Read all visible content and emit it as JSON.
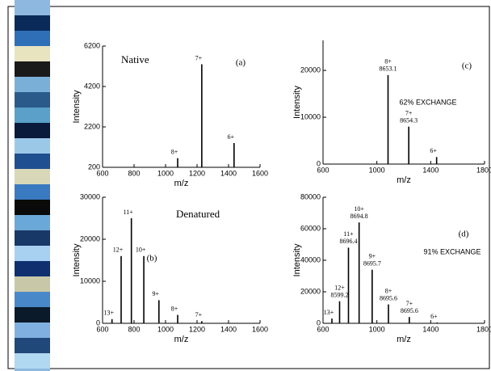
{
  "chart_data": [
    {
      "type": "stem",
      "title": "Native",
      "panel_label": "(a)",
      "x_label": "m/z",
      "y_label": "Intensity",
      "x": [
        1077,
        1230,
        1435
      ],
      "values": [
        650,
        5300,
        1400
      ],
      "peak_labels": [
        "8+",
        "7+",
        "6+"
      ],
      "xlim": [
        600,
        1600
      ],
      "xticks": [
        600,
        800,
        1000,
        1200,
        1400,
        1600
      ],
      "ylim": [
        200,
        6200
      ],
      "yticks": [
        200,
        2200,
        4200,
        6200
      ],
      "color": "#000000"
    },
    {
      "type": "stem",
      "title": "Denatured",
      "panel_label": "(b)",
      "x_label": "m/z",
      "y_label": "Intensity",
      "x": [
        660,
        718,
        783,
        862,
        958,
        1077,
        1230
      ],
      "values": [
        1000,
        16000,
        25000,
        16000,
        5500,
        2000,
        500
      ],
      "peak_labels": [
        "13+",
        "12+",
        "11+",
        "10+",
        "9+",
        "8+",
        "7+"
      ],
      "xlim": [
        600,
        1600
      ],
      "xticks": [
        600,
        800,
        1000,
        1200,
        1400,
        1600
      ],
      "ylim": [
        0,
        30000
      ],
      "yticks": [
        0,
        10000,
        20000,
        30000
      ],
      "color": "#000000"
    },
    {
      "type": "stem",
      "panel_label": "(c)",
      "annotation": "62% EXCHANGE",
      "x_label": "m/z",
      "y_label": "Intensity",
      "x": [
        1083,
        1237,
        1444
      ],
      "values": [
        19000,
        8000,
        1500
      ],
      "peak_labels": [
        "8+",
        "7+",
        "6+"
      ],
      "mass_labels": [
        "8653.1",
        "8654.3",
        null
      ],
      "xlim": [
        600,
        1800
      ],
      "xticks": [
        600,
        1000,
        1400,
        1800
      ],
      "ylim": [
        0,
        26400
      ],
      "yticks": [
        0,
        10000,
        20000
      ],
      "color": "#000000"
    },
    {
      "type": "stem",
      "panel_label": "(d)",
      "annotation": "91% EXCHANGE",
      "x_label": "m/z",
      "y_label": "Intensity",
      "x": [
        666,
        723,
        789,
        868,
        965,
        1086,
        1241,
        1448
      ],
      "values": [
        3000,
        14000,
        48000,
        64000,
        34000,
        12000,
        4000,
        500
      ],
      "peak_labels": [
        "13+",
        "12+",
        "11+",
        "10+",
        "9+",
        "8+",
        "7+",
        "6+"
      ],
      "mass_labels": [
        null,
        "8599.2",
        "8696.4",
        "8694.8",
        "8695.7",
        "8695.6",
        "8695.6",
        null
      ],
      "xlim": [
        600,
        1800
      ],
      "xticks": [
        600,
        1000,
        1400,
        1800
      ],
      "ylim": [
        0,
        80000
      ],
      "yticks": [
        0,
        20000,
        40000,
        60000,
        80000
      ],
      "color": "#000000"
    }
  ]
}
